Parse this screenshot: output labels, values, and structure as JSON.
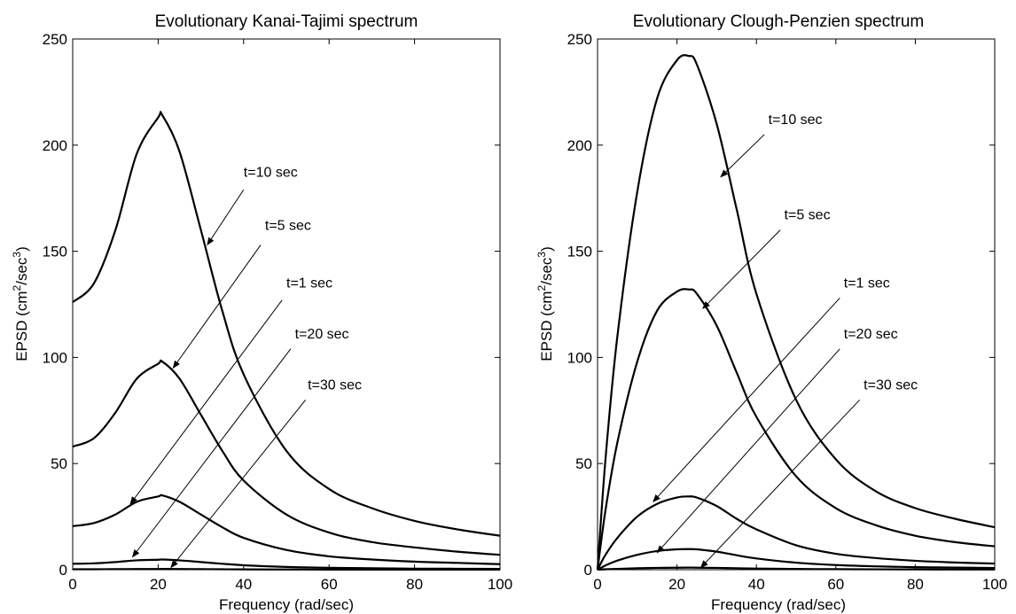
{
  "chart_data": [
    {
      "type": "line",
      "title": "Evolutionary Kanai-Tajimi spectrum",
      "xlabel": "Frequency (rad/sec)",
      "ylabel_base": "EPSD (cm",
      "ylabel_sup1": "2",
      "ylabel_mid": "/sec",
      "ylabel_sup2": "3",
      "ylabel_end": ")",
      "xlim": [
        0,
        100
      ],
      "ylim": [
        0,
        250
      ],
      "xticks": [
        0,
        20,
        40,
        60,
        80,
        100
      ],
      "yticks": [
        0,
        50,
        100,
        150,
        200,
        250
      ],
      "grid": false,
      "line_color": "#000000",
      "x": [
        0,
        5,
        10,
        15,
        20,
        21,
        25,
        30,
        35,
        40,
        50,
        60,
        70,
        80,
        90,
        100
      ],
      "series": [
        {
          "name": "t=10 sec",
          "values": [
            126,
            135,
            160,
            196,
            213,
            214,
            197,
            160,
            122,
            92,
            56,
            38,
            29,
            23,
            19,
            16
          ]
        },
        {
          "name": "t=5 sec",
          "values": [
            58,
            62,
            74,
            90,
            97,
            98,
            90,
            73,
            56,
            42,
            26,
            17.5,
            13,
            10.5,
            8.5,
            7
          ]
        },
        {
          "name": "t=1 sec",
          "values": [
            20.5,
            22,
            26,
            32,
            34.5,
            35,
            32,
            26,
            20,
            15,
            9.3,
            6.3,
            4.8,
            3.8,
            3.2,
            2.6
          ]
        },
        {
          "name": "t=20 sec",
          "values": [
            2.8,
            3,
            3.6,
            4.4,
            4.7,
            4.8,
            4.4,
            3.6,
            2.8,
            2.1,
            1.3,
            0.9,
            0.7,
            0.5,
            0.45,
            0.4
          ]
        },
        {
          "name": "t=30 sec",
          "values": [
            0.2,
            0.22,
            0.26,
            0.32,
            0.34,
            0.35,
            0.32,
            0.26,
            0.2,
            0.15,
            0.09,
            0.06,
            0.05,
            0.04,
            0.03,
            0.03
          ]
        }
      ],
      "annotations": [
        {
          "text": "t=10 sec",
          "label_at": [
            40,
            185
          ],
          "arrow_from": [
            40,
            179
          ],
          "arrow_to": [
            31.5,
            153
          ]
        },
        {
          "text": "t=5 sec",
          "label_at": [
            45,
            160
          ],
          "arrow_from": [
            44,
            153
          ],
          "arrow_to": [
            23.5,
            95
          ]
        },
        {
          "text": "t=1 sec",
          "label_at": [
            50,
            133
          ],
          "arrow_from": [
            49,
            127
          ],
          "arrow_to": [
            13.5,
            31
          ]
        },
        {
          "text": "t=20 sec",
          "label_at": [
            52,
            109
          ],
          "arrow_from": [
            51,
            104
          ],
          "arrow_to": [
            14,
            6
          ]
        },
        {
          "text": "t=30 sec",
          "label_at": [
            55,
            85
          ],
          "arrow_from": [
            54.5,
            80
          ],
          "arrow_to": [
            23,
            1
          ]
        }
      ]
    },
    {
      "type": "line",
      "title": "Evolutionary Clough-Penzien spectrum",
      "xlabel": "Frequency (rad/sec)",
      "ylabel_base": "EPSD (cm",
      "ylabel_sup1": "2",
      "ylabel_mid": "/sec",
      "ylabel_sup2": "3",
      "ylabel_end": ")",
      "xlim": [
        0,
        100
      ],
      "ylim": [
        0,
        250
      ],
      "xticks": [
        0,
        20,
        40,
        60,
        80,
        100
      ],
      "yticks": [
        0,
        50,
        100,
        150,
        200,
        250
      ],
      "grid": false,
      "line_color": "#000000",
      "x": [
        0,
        2,
        5,
        10,
        15,
        20,
        23,
        25,
        30,
        35,
        40,
        50,
        60,
        70,
        80,
        90,
        100
      ],
      "series": [
        {
          "name": "t=10 sec",
          "values": [
            0,
            52,
            110,
            178,
            222,
            240,
            242,
            238,
            210,
            170,
            130,
            80,
            52,
            37,
            29,
            24,
            20
          ]
        },
        {
          "name": "t=5 sec",
          "values": [
            0,
            28,
            60,
            98,
            122,
            131,
            132,
            130,
            115,
            93,
            72,
            44,
            29,
            21,
            16,
            13,
            11
          ]
        },
        {
          "name": "t=1 sec",
          "values": [
            0,
            7,
            15,
            25,
            31,
            34,
            34.5,
            34,
            30,
            24,
            19,
            11.5,
            7.5,
            5.5,
            4.2,
            3.4,
            2.9
          ]
        },
        {
          "name": "t=20 sec",
          "values": [
            0,
            2,
            4.3,
            7,
            8.8,
            9.6,
            9.7,
            9.6,
            8.5,
            6.8,
            5.3,
            3.3,
            2.2,
            1.6,
            1.2,
            1,
            0.8
          ]
        },
        {
          "name": "t=30 sec",
          "values": [
            0,
            0.2,
            0.4,
            0.7,
            0.85,
            0.95,
            1,
            0.95,
            0.85,
            0.7,
            0.55,
            0.35,
            0.25,
            0.18,
            0.14,
            0.1,
            0.08
          ]
        }
      ],
      "annotations": [
        {
          "text": "t=10 sec",
          "label_at": [
            43,
            210
          ],
          "arrow_from": [
            42,
            205
          ],
          "arrow_to": [
            31,
            185
          ]
        },
        {
          "text": "t=5 sec",
          "label_at": [
            47,
            165
          ],
          "arrow_from": [
            46,
            160
          ],
          "arrow_to": [
            26.5,
            123
          ]
        },
        {
          "text": "t=1 sec",
          "label_at": [
            62,
            133
          ],
          "arrow_from": [
            61,
            128
          ],
          "arrow_to": [
            14,
            32
          ]
        },
        {
          "text": "t=20 sec",
          "label_at": [
            62,
            109
          ],
          "arrow_from": [
            61,
            104
          ],
          "arrow_to": [
            15,
            8
          ]
        },
        {
          "text": "t=30 sec",
          "label_at": [
            67,
            85
          ],
          "arrow_from": [
            66,
            80
          ],
          "arrow_to": [
            26,
            1
          ]
        }
      ]
    }
  ]
}
